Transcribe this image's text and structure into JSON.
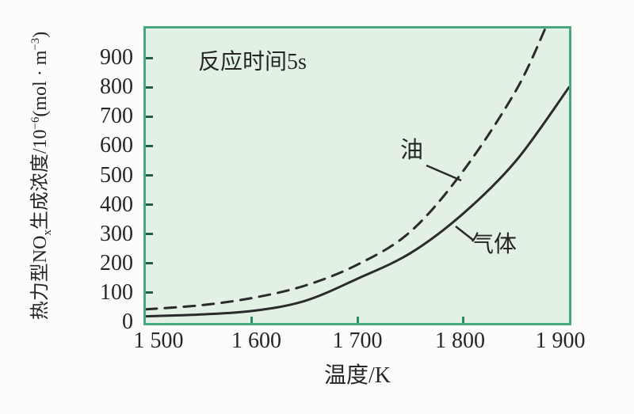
{
  "labels": {
    "annotation": "反应时间5s",
    "x_axis_title": "温度/K",
    "y_axis_title_parts": {
      "base1": "热力型NO",
      "sub1": "x",
      "base2": "生成浓度/10",
      "sup1": "−6",
      "base3": "(mol · m",
      "sup2": "−3",
      "base4": ")"
    }
  },
  "colors": {
    "plot_border": "#46a87e",
    "plot_background": "#e2f1e3",
    "curve": "#2b2b2b",
    "x_tick_mark": "#2f8a63",
    "y_tick_mark": "#1f5e42",
    "text": "#262626",
    "page_background": "#fcfdfb"
  },
  "chart_data": {
    "type": "line",
    "annotation": "反应时间5s",
    "xlabel": "温度/K",
    "ylabel": "热力型NOx生成浓度/10^-6 (mol·m^-3)",
    "xlim": [
      1500,
      1900
    ],
    "ylim": [
      0,
      1000
    ],
    "grid": false,
    "legend_position": "inline-labels-with-leader-lines",
    "x_ticks": [
      {
        "value": 1500,
        "label": "1 500",
        "dx": 16
      },
      {
        "value": 1600,
        "label": "1 600",
        "dx": 6
      },
      {
        "value": 1700,
        "label": "1 700",
        "dx": 0
      },
      {
        "value": 1800,
        "label": "1 800",
        "dx": -4
      },
      {
        "value": 1900,
        "label": "1 900",
        "dx": -11
      }
    ],
    "y_ticks": [
      {
        "value": 0,
        "label": "0"
      },
      {
        "value": 100,
        "label": "100"
      },
      {
        "value": 200,
        "label": "200"
      },
      {
        "value": 300,
        "label": "300"
      },
      {
        "value": 400,
        "label": "400"
      },
      {
        "value": 500,
        "label": "500"
      },
      {
        "value": 600,
        "label": "600"
      },
      {
        "value": 700,
        "label": "700"
      },
      {
        "value": 800,
        "label": "800"
      },
      {
        "value": 900,
        "label": "900"
      }
    ],
    "series": [
      {
        "id": "oil",
        "name": "油",
        "line_style": "dashed",
        "x": [
          1500,
          1550,
          1600,
          1650,
          1700,
          1750,
          1800,
          1850,
          1880
        ],
        "y": [
          44,
          57,
          82,
          124,
          196,
          308,
          515,
          790,
          1020
        ]
      },
      {
        "id": "gas",
        "name": "气体",
        "line_style": "solid",
        "x": [
          1500,
          1550,
          1600,
          1650,
          1700,
          1750,
          1800,
          1850,
          1900
        ],
        "y": [
          20,
          26,
          38,
          72,
          148,
          235,
          370,
          550,
          800
        ]
      }
    ]
  }
}
